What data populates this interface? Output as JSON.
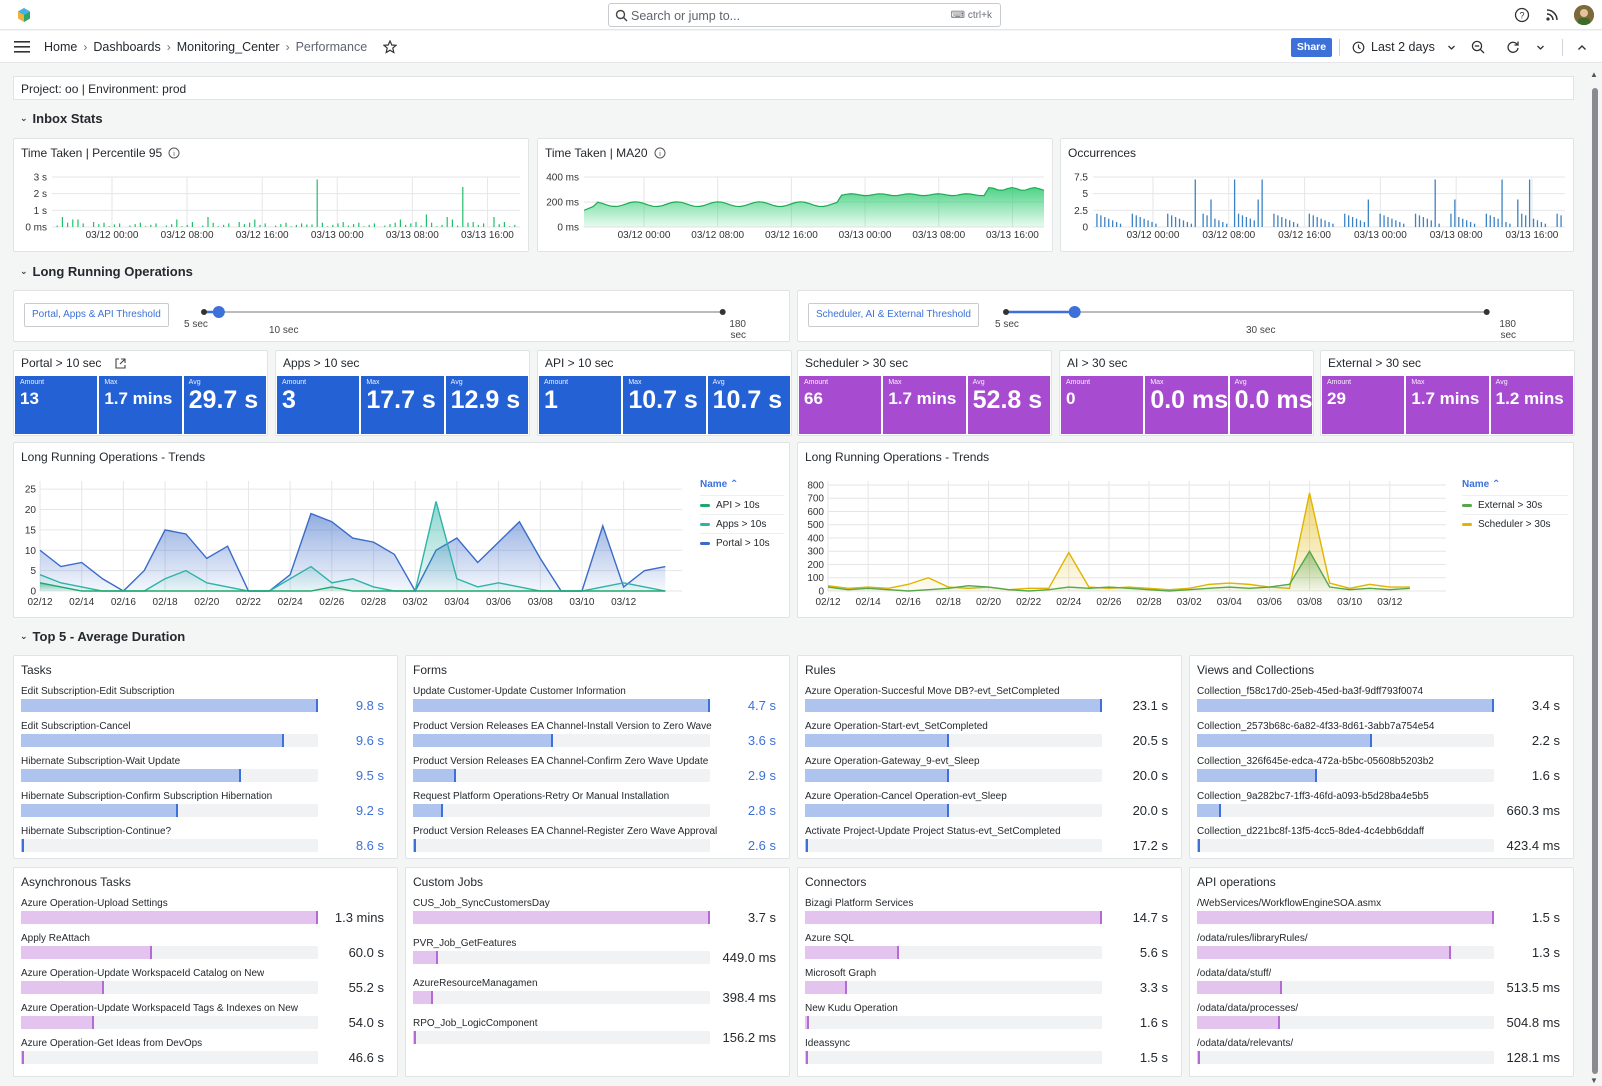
{
  "topbar": {
    "search_placeholder": "Search or jump to...",
    "search_shortcut": "ctrl+k"
  },
  "breadcrumb": {
    "items": [
      "Home",
      "Dashboards",
      "Monitoring_Center",
      "Performance"
    ]
  },
  "toolbar": {
    "share_label": "Share",
    "time_range": "Last 2 days"
  },
  "info_text": "Project: oo | Environment: prod",
  "sections": {
    "inbox": "Inbox Stats",
    "long_running": "Long Running Operations",
    "top5": "Top 5 - Average Duration"
  },
  "inbox_panels": [
    {
      "title": "Time Taken | Percentile 95",
      "y_ticks": [
        "3 s",
        "2 s",
        "1 s",
        "0 ms"
      ],
      "x_ticks": [
        "03/12 00:00",
        "03/12 08:00",
        "03/12 16:00",
        "03/13 00:00",
        "03/13 08:00",
        "03/13 16:00"
      ]
    },
    {
      "title": "Time Taken | MA20",
      "y_ticks": [
        "400 ms",
        "200 ms",
        "0 ms"
      ],
      "x_ticks": [
        "03/12 00:00",
        "03/12 08:00",
        "03/12 16:00",
        "03/13 00:00",
        "03/13 08:00",
        "03/13 16:00"
      ]
    },
    {
      "title": "Occurrences",
      "y_ticks": [
        "7.5",
        "5",
        "2.5",
        "0"
      ],
      "x_ticks": [
        "03/12 00:00",
        "03/12 08:00",
        "03/12 16:00",
        "03/13 00:00",
        "03/13 08:00",
        "03/13 16:00"
      ]
    }
  ],
  "thresholds": [
    {
      "label": "Portal, Apps & API Threshold",
      "min": "5 sec",
      "value": "10 sec",
      "max": "180 sec",
      "min_value": 5,
      "current": 10,
      "max_value": 180
    },
    {
      "label": "Scheduler, AI & External Threshold",
      "min": "5 sec",
      "value": "30 sec",
      "max": "180 sec",
      "min_value": 5,
      "current": 30,
      "max_value": 180
    }
  ],
  "stat_groups": [
    {
      "title": "Portal > 10 sec",
      "color": "#2361d5",
      "stats": [
        {
          "label": "Amount",
          "value": "13"
        },
        {
          "label": "Max",
          "value": "1.7 mins"
        },
        {
          "label": "Avg",
          "value": "29.7 s"
        }
      ]
    },
    {
      "title": "Apps > 10 sec",
      "color": "#2361d5",
      "stats": [
        {
          "label": "Amount",
          "value": "3"
        },
        {
          "label": "Max",
          "value": "17.7 s"
        },
        {
          "label": "Avg",
          "value": "12.9 s"
        }
      ]
    },
    {
      "title": "API > 10 sec",
      "color": "#2361d5",
      "stats": [
        {
          "label": "Amount",
          "value": "1"
        },
        {
          "label": "Max",
          "value": "10.7 s"
        },
        {
          "label": "Avg",
          "value": "10.7 s"
        }
      ]
    },
    {
      "title": "Scheduler > 30 sec",
      "color": "#a74cd0",
      "stats": [
        {
          "label": "Amount",
          "value": "66"
        },
        {
          "label": "Max",
          "value": "1.7 mins"
        },
        {
          "label": "Avg",
          "value": "52.8 s"
        }
      ]
    },
    {
      "title": "AI > 30 sec",
      "color": "#a74cd0",
      "stats": [
        {
          "label": "Amount",
          "value": "0"
        },
        {
          "label": "Max",
          "value": "0.0 ms"
        },
        {
          "label": "Avg",
          "value": "0.0 ms"
        }
      ]
    },
    {
      "title": "External > 30 sec",
      "color": "#a74cd0",
      "stats": [
        {
          "label": "Amount",
          "value": "29"
        },
        {
          "label": "Max",
          "value": "1.7 mins"
        },
        {
          "label": "Avg",
          "value": "1.2 mins"
        }
      ]
    }
  ],
  "chart_data": [
    {
      "type": "area",
      "title": "Long Running Operations - Trends",
      "legend_header": "Name",
      "legend_position": "right",
      "ylim": [
        0,
        27
      ],
      "y_ticks": [
        0,
        5,
        10,
        15,
        20,
        25
      ],
      "x_ticks": [
        "02/12",
        "02/14",
        "02/16",
        "02/18",
        "02/20",
        "02/22",
        "02/24",
        "02/26",
        "02/28",
        "03/02",
        "03/04",
        "03/06",
        "03/08",
        "03/10",
        "03/12"
      ],
      "x_day_range": [
        0,
        30.8
      ],
      "series": [
        {
          "name": "API > 10s",
          "color": "#1fa86b",
          "x": [
            0,
            1,
            2,
            3,
            4,
            5,
            6,
            7,
            8,
            9,
            10,
            11,
            12,
            13,
            14,
            15,
            16,
            17,
            18,
            19,
            20,
            21,
            22,
            23,
            24,
            25,
            26,
            27,
            28,
            29,
            30
          ],
          "values": [
            2,
            1,
            0,
            0,
            0,
            0,
            0,
            0,
            0,
            0,
            0,
            0,
            0,
            0,
            1,
            0,
            0,
            0,
            0,
            0,
            0,
            0,
            0,
            0,
            0,
            0,
            0,
            0,
            0,
            0,
            0
          ]
        },
        {
          "name": "Apps > 10s",
          "color": "#2eb3a8",
          "x": [
            0,
            1,
            2,
            3,
            4,
            5,
            6,
            7,
            8,
            9,
            10,
            11,
            12,
            13,
            14,
            15,
            16,
            17,
            18,
            19,
            20,
            21,
            22,
            23,
            24,
            25,
            26,
            27,
            28,
            29,
            30
          ],
          "values": [
            4,
            2,
            1,
            0,
            0,
            0,
            3,
            5,
            2,
            1,
            0,
            0,
            3,
            6,
            2,
            3,
            1,
            0,
            0,
            22,
            3,
            1,
            2,
            1,
            0,
            0,
            0,
            1,
            2,
            1,
            0
          ]
        },
        {
          "name": "Portal > 10s",
          "color": "#3a6bc9",
          "x": [
            0,
            1,
            2,
            3,
            4,
            5,
            6,
            7,
            8,
            9,
            10,
            11,
            12,
            13,
            14,
            15,
            16,
            17,
            18,
            19,
            20,
            21,
            22,
            23,
            24,
            25,
            26,
            27,
            28,
            29,
            30
          ],
          "values": [
            10,
            6,
            7,
            3,
            0,
            5,
            15,
            14,
            8,
            11,
            0,
            0,
            4,
            19,
            17,
            13,
            12,
            9,
            0,
            10,
            13,
            7,
            12,
            17,
            8,
            0,
            0,
            16,
            1,
            5,
            6
          ]
        }
      ]
    },
    {
      "type": "area",
      "title": "Long Running Operations - Trends",
      "legend_header": "Name",
      "legend_position": "right",
      "ylim": [
        0,
        830
      ],
      "y_ticks": [
        0,
        100,
        200,
        300,
        400,
        500,
        600,
        700,
        800
      ],
      "x_ticks": [
        "02/12",
        "02/14",
        "02/16",
        "02/18",
        "02/20",
        "02/22",
        "02/24",
        "02/26",
        "02/28",
        "03/02",
        "03/04",
        "03/06",
        "03/08",
        "03/10",
        "03/12"
      ],
      "x_day_range": [
        0,
        30.8
      ],
      "series": [
        {
          "name": "External > 30s",
          "color": "#56a64b",
          "x": [
            0,
            1,
            2,
            3,
            4,
            5,
            6,
            7,
            8,
            9,
            10,
            11,
            12,
            13,
            14,
            15,
            16,
            17,
            18,
            19,
            20,
            21,
            22,
            23,
            24,
            25,
            26,
            27,
            28,
            29
          ],
          "values": [
            30,
            10,
            20,
            10,
            0,
            10,
            20,
            40,
            30,
            10,
            0,
            10,
            30,
            20,
            30,
            20,
            10,
            0,
            10,
            20,
            30,
            20,
            30,
            50,
            300,
            30,
            10,
            20,
            10,
            20
          ]
        },
        {
          "name": "Scheduler > 30s",
          "color": "#e0b400",
          "x": [
            0,
            1,
            2,
            3,
            4,
            5,
            6,
            7,
            8,
            9,
            10,
            11,
            12,
            13,
            14,
            15,
            16,
            17,
            18,
            19,
            20,
            21,
            22,
            23,
            24,
            25,
            26,
            27,
            28,
            29
          ],
          "values": [
            40,
            20,
            30,
            20,
            50,
            100,
            30,
            20,
            30,
            10,
            20,
            20,
            290,
            30,
            20,
            30,
            20,
            10,
            20,
            50,
            60,
            50,
            30,
            20,
            740,
            60,
            20,
            50,
            30,
            30
          ]
        }
      ]
    }
  ],
  "top5_panels": [
    {
      "title": "Tasks",
      "kind": "b",
      "items": [
        {
          "label": "Edit Subscription-Edit Subscription",
          "value": "9.8 s",
          "fraction": 1.0
        },
        {
          "label": "Edit Subscription-Cancel",
          "value": "9.6 s",
          "fraction": 0.885
        },
        {
          "label": "Hibernate Subscription-Wait Update",
          "value": "9.5 s",
          "fraction": 0.74
        },
        {
          "label": "Hibernate Subscription-Confirm Subscription Hibernation",
          "value": "9.2 s",
          "fraction": 0.53
        },
        {
          "label": "Hibernate Subscription-Continue?",
          "value": "8.6 s",
          "fraction": 0.01
        }
      ]
    },
    {
      "title": "Forms",
      "kind": "b",
      "items": [
        {
          "label": "Update Customer-Update Customer Information",
          "value": "4.7 s",
          "fraction": 1.0
        },
        {
          "label": "Product Version Releases EA Channel-Install Version to Zero Wave",
          "value": "3.6 s",
          "fraction": 0.47
        },
        {
          "label": "Product Version Releases EA Channel-Confirm Zero Wave Update",
          "value": "2.9 s",
          "fraction": 0.145
        },
        {
          "label": "Request Platform Operations-Retry Or Manual Installation",
          "value": "2.8 s",
          "fraction": 0.1
        },
        {
          "label": "Product Version Releases EA Channel-Register Zero Wave Approval",
          "value": "2.6 s",
          "fraction": 0.01
        }
      ]
    },
    {
      "title": "Rules",
      "kind": "k",
      "items": [
        {
          "label": "Azure Operation-Succesful Move DB?-evt_SetCompleted",
          "value": "23.1 s",
          "fraction": 1.0
        },
        {
          "label": "Azure Operation-Start-evt_SetCompleted",
          "value": "20.5 s",
          "fraction": 0.485
        },
        {
          "label": "Azure Operation-Gateway_9-evt_Sleep",
          "value": "20.0 s",
          "fraction": 0.485
        },
        {
          "label": "Azure Operation-Cancel Operation-evt_Sleep",
          "value": "20.0 s",
          "fraction": 0.485
        },
        {
          "label": "Activate Project-Update Project Status-evt_SetCompleted",
          "value": "17.2 s",
          "fraction": 0.01
        }
      ]
    },
    {
      "title": "Views and Collections",
      "kind": "k",
      "items": [
        {
          "label": "Collection_f58c17d0-25eb-45ed-ba3f-9dff793f0074",
          "value": "3.4 s",
          "fraction": 1.0
        },
        {
          "label": "Collection_2573b68c-6a82-4f33-8d61-3abb7a754e54",
          "value": "2.2 s",
          "fraction": 0.59
        },
        {
          "label": "Collection_326f645e-edca-472a-b5bc-05608b5203b2",
          "value": "1.6 s",
          "fraction": 0.405
        },
        {
          "label": "Collection_9a282bc7-1ff3-46fd-a093-b5d28ba4e5b5",
          "value": "660.3 ms",
          "fraction": 0.08
        },
        {
          "label": "Collection_d221bc8f-13f5-4cc5-8de4-4c4ebb6ddaff",
          "value": "423.4 ms",
          "fraction": 0.01
        }
      ]
    },
    {
      "title": "Asynchronous Tasks",
      "kind": "k",
      "fill": "p",
      "items": [
        {
          "label": "Azure Operation-Upload Settings",
          "value": "1.3 mins",
          "fraction": 1.0
        },
        {
          "label": "Apply ReAttach",
          "value": "60.0 s",
          "fraction": 0.44
        },
        {
          "label": "Azure Operation-Update WorkspaceId Catalog on New",
          "value": "55.2 s",
          "fraction": 0.28
        },
        {
          "label": "Azure Operation-Update WorkspaceId Tags & Indexes on New",
          "value": "54.0 s",
          "fraction": 0.245
        },
        {
          "label": "Azure Operation-Get Ideas from DevOps",
          "value": "46.6 s",
          "fraction": 0.01
        }
      ]
    },
    {
      "title": "Custom Jobs",
      "kind": "k",
      "fill": "p",
      "items": [
        {
          "label": "CUS_Job_SyncCustomersDay",
          "value": "3.7 s",
          "fraction": 1.0
        },
        {
          "label": "PVR_Job_GetFeatures",
          "value": "449.0 ms",
          "fraction": 0.085
        },
        {
          "label": "AzureResourceManagamen",
          "value": "398.4 ms",
          "fraction": 0.066
        },
        {
          "label": "RPO_Job_LogicComponent",
          "value": "156.2 ms",
          "fraction": 0.01
        }
      ]
    },
    {
      "title": "Connectors",
      "kind": "k",
      "fill": "p",
      "items": [
        {
          "label": "Bizagi Platform Services",
          "value": "14.7 s",
          "fraction": 1.0
        },
        {
          "label": "Azure SQL",
          "value": "5.6 s",
          "fraction": 0.315
        },
        {
          "label": "Microsoft Graph",
          "value": "3.3 s",
          "fraction": 0.14
        },
        {
          "label": "New Kudu Operation",
          "value": "1.6 s",
          "fraction": 0.015
        },
        {
          "label": "Ideassync",
          "value": "1.5 s",
          "fraction": 0.01
        }
      ]
    },
    {
      "title": "API operations",
      "kind": "k",
      "fill": "p",
      "items": [
        {
          "label": "/WebServices/WorkflowEngineSOA.asmx",
          "value": "1.5 s",
          "fraction": 1.0
        },
        {
          "label": "/odata/rules/libraryRules/",
          "value": "1.3 s",
          "fraction": 0.855
        },
        {
          "label": "/odata/data/stuff/",
          "value": "513.5 ms",
          "fraction": 0.285
        },
        {
          "label": "/odata/data/processes/",
          "value": "504.8 ms",
          "fraction": 0.28
        },
        {
          "label": "/odata/data/relevants/",
          "value": "128.1 ms",
          "fraction": 0.01
        }
      ]
    }
  ]
}
